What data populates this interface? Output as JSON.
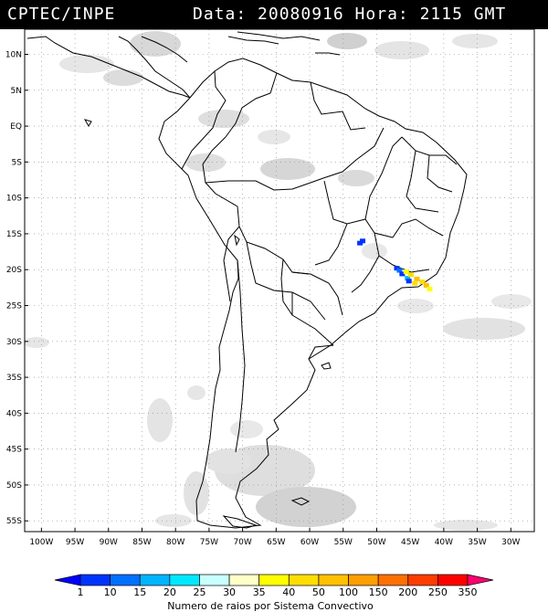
{
  "header": {
    "left": "CPTEC/INPE",
    "right": "Data: 20080916 Hora: 2115 GMT"
  },
  "map": {
    "lat_labels": [
      "10N",
      "5N",
      "EQ",
      "5S",
      "10S",
      "15S",
      "20S",
      "25S",
      "30S",
      "35S",
      "40S",
      "45S",
      "50S",
      "55S"
    ],
    "lon_labels": [
      "100W",
      "95W",
      "90W",
      "85W",
      "80W",
      "75W",
      "70W",
      "65W",
      "60W",
      "55W",
      "50W",
      "45W",
      "40W",
      "35W",
      "30W"
    ],
    "lightning": [
      {
        "lat": -16.3,
        "lon": -52.5,
        "cls": "1"
      },
      {
        "lat": -16.0,
        "lon": -52.1,
        "cls": "1"
      },
      {
        "lat": -19.8,
        "lon": -47.0,
        "cls": "1"
      },
      {
        "lat": -20.1,
        "lon": -46.6,
        "cls": "10"
      },
      {
        "lat": -20.6,
        "lon": -46.2,
        "cls": "1"
      },
      {
        "lat": -21.2,
        "lon": -45.4,
        "cls": "15"
      },
      {
        "lat": -21.6,
        "lon": -45.2,
        "cls": "1"
      },
      {
        "lat": -20.3,
        "lon": -45.6,
        "cls": "35"
      },
      {
        "lat": -20.7,
        "lon": -44.9,
        "cls": "40"
      },
      {
        "lat": -21.3,
        "lon": -44.0,
        "cls": "50"
      },
      {
        "lat": -21.7,
        "lon": -43.2,
        "cls": "40"
      },
      {
        "lat": -22.2,
        "lon": -42.6,
        "cls": "50"
      },
      {
        "lat": -22.7,
        "lon": -42.1,
        "cls": "35"
      },
      {
        "lat": -21.9,
        "lon": -44.3,
        "cls": "40"
      }
    ]
  },
  "colorbar": {
    "labels": [
      "1",
      "10",
      "15",
      "20",
      "25",
      "30",
      "35",
      "40",
      "50",
      "100",
      "150",
      "200",
      "250",
      "350"
    ],
    "colors": [
      "#0000ff",
      "#0033ff",
      "#0070ff",
      "#00b4ff",
      "#00e8ff",
      "#c8ffff",
      "#ffffc8",
      "#ffff00",
      "#ffdd00",
      "#ffc000",
      "#ff9e00",
      "#ff7000",
      "#ff3c00",
      "#ff0000",
      "#ff0070"
    ],
    "title": "Numero de raios por Sistema Convectivo"
  }
}
